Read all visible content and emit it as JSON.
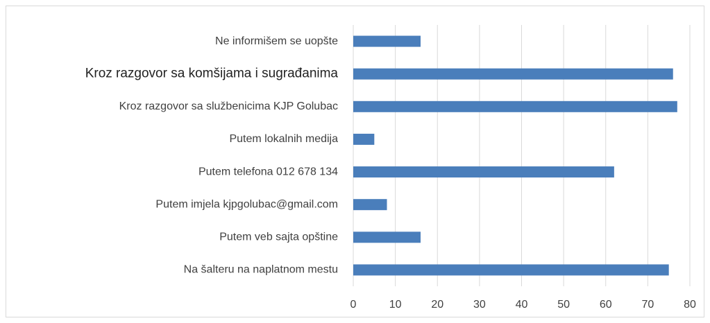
{
  "chart_data": {
    "type": "bar",
    "orientation": "horizontal",
    "categories": [
      "Ne informišem se uopšte",
      "Kroz razgovor sa komšijama i sugrađanima",
      "Kroz razgovor sa službenicima KJP Golubac",
      "Putem lokalnih medija",
      "Putem telefona 012 678 134",
      "Putem imjela kjpgolubac@gmail.com",
      "Putem veb sajta opštine",
      "Na šalteru na naplatnom mestu"
    ],
    "values": [
      16,
      76,
      77,
      5,
      62,
      8,
      16,
      75
    ],
    "color": "#4a7ebb",
    "xlim": [
      0,
      80
    ],
    "xticks": [
      0,
      10,
      20,
      30,
      40,
      50,
      60,
      70,
      80
    ],
    "grid": true
  }
}
